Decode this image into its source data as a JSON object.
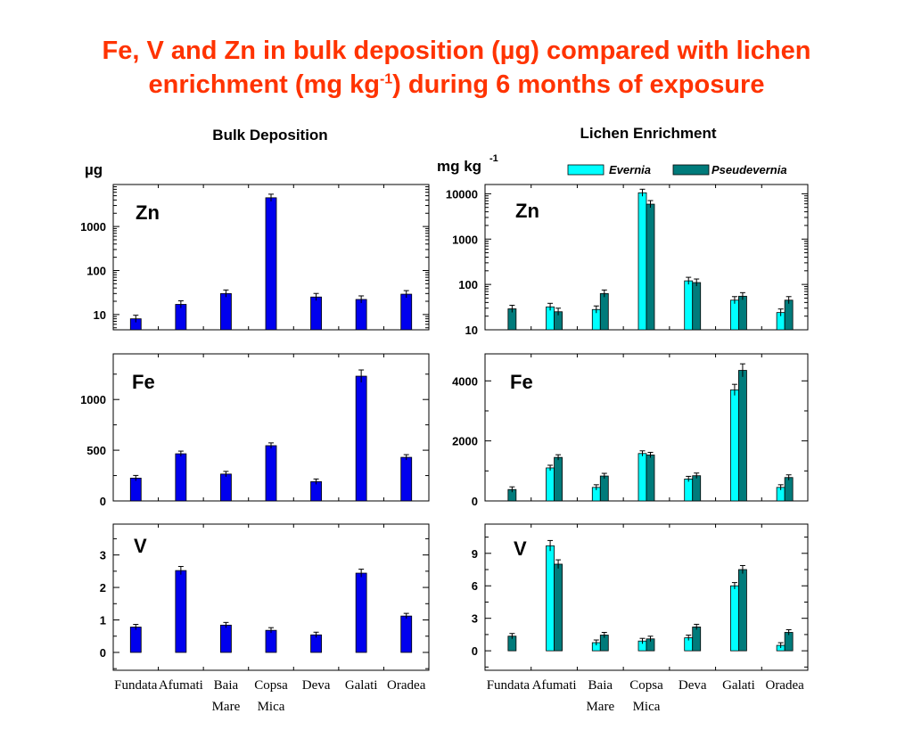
{
  "title": {
    "line1": "Fe, V and Zn in bulk deposition (µg) compared with lichen",
    "line2_pre": "enrichment (mg kg",
    "line2_sup": "-1",
    "line2_post": ") during 6 months of exposure"
  },
  "colors": {
    "title": "#ff3300",
    "bulk": "#0000ee",
    "evernia": "#00ffff",
    "pseudevernia": "#007b7b"
  },
  "chart_data": [
    {
      "type": "bar",
      "panel": "bulk-zn",
      "title": "Bulk Deposition",
      "ylabel": "µg",
      "label": "Zn",
      "scale": "log",
      "ylim": [
        4.5,
        9000
      ],
      "yticks": [
        10,
        100,
        1000
      ],
      "categories": [
        "Fundata",
        "Afumati",
        "Baia Mare",
        "Copsa Mica",
        "Deva",
        "Galati",
        "Oradea"
      ],
      "series": [
        {
          "values": [
            8,
            17,
            30,
            4500,
            25,
            22,
            29
          ]
        }
      ]
    },
    {
      "type": "bar",
      "panel": "bulk-fe",
      "label": "Fe",
      "ylim": [
        0,
        1450
      ],
      "yticks": [
        0,
        500,
        1000
      ],
      "categories": [
        "Fundata",
        "Afumati",
        "Baia Mare",
        "Copsa Mica",
        "Deva",
        "Galati",
        "Oradea"
      ],
      "series": [
        {
          "values": [
            225,
            465,
            265,
            545,
            190,
            1230,
            430
          ]
        }
      ]
    },
    {
      "type": "bar",
      "panel": "bulk-v",
      "label": "V",
      "ylim": [
        -0.55,
        3.95
      ],
      "yticks": [
        0,
        1,
        2,
        3
      ],
      "categories": [
        "Fundata",
        "Afumati",
        "Baia Mare",
        "Copsa Mica",
        "Deva",
        "Galati",
        "Oradea"
      ],
      "series": [
        {
          "values": [
            0.78,
            2.52,
            0.84,
            0.68,
            0.54,
            2.44,
            1.12
          ]
        }
      ]
    },
    {
      "type": "bar",
      "panel": "lichen-zn",
      "title": "Lichen Enrichment",
      "ylabel": "mg kg",
      "ylabel_sup": "-1",
      "label": "Zn",
      "scale": "log",
      "ylim": [
        10,
        16000
      ],
      "yticks": [
        10,
        100,
        1000,
        10000
      ],
      "legend": "top-right",
      "categories": [
        "Fundata",
        "Afumati",
        "Baia Mare",
        "Copsa Mica",
        "Deva",
        "Galati",
        "Oradea"
      ],
      "series": [
        {
          "name": "Evernia",
          "values": [
            null,
            32,
            28,
            10500,
            120,
            45,
            24
          ]
        },
        {
          "name": "Pseudevernia",
          "values": [
            29,
            25,
            63,
            5900,
            110,
            55,
            45
          ]
        }
      ]
    },
    {
      "type": "bar",
      "panel": "lichen-fe",
      "label": "Fe",
      "ylim": [
        0,
        4900
      ],
      "yticks": [
        0,
        2000,
        4000
      ],
      "categories": [
        "Fundata",
        "Afumati",
        "Baia Mare",
        "Copsa Mica",
        "Deva",
        "Galati",
        "Oradea"
      ],
      "series": [
        {
          "name": "Evernia",
          "values": [
            null,
            1100,
            450,
            1580,
            730,
            3700,
            450
          ]
        },
        {
          "name": "Pseudevernia",
          "values": [
            380,
            1450,
            830,
            1530,
            840,
            4350,
            780
          ]
        }
      ]
    },
    {
      "type": "bar",
      "panel": "lichen-v",
      "label": "V",
      "ylim": [
        -1.8,
        11.7
      ],
      "yticks": [
        0,
        3,
        6,
        9
      ],
      "categories": [
        "Fundata",
        "Afumati",
        "Baia Mare",
        "Copsa Mica",
        "Deva",
        "Galati",
        "Oradea"
      ],
      "series": [
        {
          "name": "Evernia",
          "values": [
            null,
            9.7,
            0.75,
            0.9,
            1.2,
            6.0,
            0.5
          ]
        },
        {
          "name": "Pseudevernia",
          "values": [
            1.35,
            8.0,
            1.45,
            1.1,
            2.2,
            7.5,
            1.7
          ]
        }
      ]
    }
  ],
  "x_labels": [
    {
      "line1": "Fundata",
      "line2": ""
    },
    {
      "line1": "Afumati",
      "line2": ""
    },
    {
      "line1": "Baia",
      "line2": "Mare"
    },
    {
      "line1": "Copsa",
      "line2": "Mica"
    },
    {
      "line1": "Deva",
      "line2": ""
    },
    {
      "line1": "Galati",
      "line2": ""
    },
    {
      "line1": "Oradea",
      "line2": ""
    }
  ]
}
